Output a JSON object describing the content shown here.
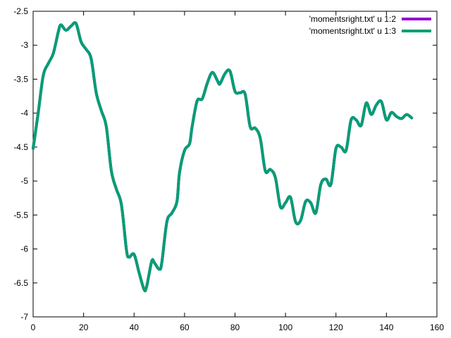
{
  "chart_data": {
    "type": "line",
    "title": "",
    "xlabel": "",
    "ylabel": "",
    "xlim": [
      0,
      160
    ],
    "ylim": [
      -7,
      -2.5
    ],
    "xticks": [
      "0",
      "20",
      "40",
      "60",
      "80",
      "100",
      "120",
      "140",
      "160"
    ],
    "yticks": [
      "-2.5",
      "-3",
      "-3.5",
      "-4",
      "-4.5",
      "-5",
      "-5.5",
      "-6",
      "-6.5",
      "-7"
    ],
    "grid": false,
    "legend_position": "top-right",
    "series": [
      {
        "name": "'momentsright.txt' u 1:2",
        "color": "#9400d3",
        "x": [
          0,
          2,
          4,
          6,
          8,
          10,
          11,
          13,
          15,
          17,
          19,
          21,
          23,
          25,
          27,
          29,
          31,
          33,
          35,
          37,
          38,
          40,
          42,
          44,
          45,
          47,
          48,
          50,
          51,
          53,
          55,
          57,
          58,
          60,
          62,
          63,
          65,
          67,
          69,
          71,
          73,
          74,
          76,
          78,
          80,
          82,
          84,
          86,
          88,
          90,
          92,
          94,
          96,
          98,
          100,
          102,
          104,
          106,
          108,
          110,
          112,
          114,
          116,
          118,
          120,
          122,
          124,
          126,
          128,
          130,
          132,
          134,
          136,
          138,
          140,
          142,
          144,
          146,
          148,
          150
        ],
        "values": [
          -4.52,
          -4.0,
          -3.45,
          -3.27,
          -3.12,
          -2.8,
          -2.7,
          -2.78,
          -2.72,
          -2.68,
          -2.95,
          -3.06,
          -3.2,
          -3.7,
          -3.96,
          -4.2,
          -4.85,
          -5.12,
          -5.35,
          -6.02,
          -6.12,
          -6.08,
          -6.35,
          -6.6,
          -6.55,
          -6.18,
          -6.2,
          -6.3,
          -6.2,
          -5.6,
          -5.47,
          -5.3,
          -4.88,
          -4.55,
          -4.45,
          -4.2,
          -3.82,
          -3.79,
          -3.56,
          -3.4,
          -3.52,
          -3.57,
          -3.42,
          -3.38,
          -3.68,
          -3.7,
          -3.72,
          -4.2,
          -4.22,
          -4.37,
          -4.85,
          -4.83,
          -4.95,
          -5.38,
          -5.32,
          -5.24,
          -5.6,
          -5.58,
          -5.3,
          -5.32,
          -5.47,
          -5.05,
          -4.97,
          -5.05,
          -4.52,
          -4.5,
          -4.55,
          -4.1,
          -4.1,
          -4.18,
          -3.85,
          -4.02,
          -3.88,
          -3.83,
          -4.1,
          -3.99,
          -4.05,
          -4.08,
          -4.02,
          -4.07
        ]
      },
      {
        "name": "'momentsright.txt' u 1:3",
        "color": "#009e73",
        "x": [
          0,
          2,
          4,
          6,
          8,
          10,
          11,
          13,
          15,
          17,
          19,
          21,
          23,
          25,
          27,
          29,
          31,
          33,
          35,
          37,
          38,
          40,
          42,
          44,
          45,
          47,
          48,
          50,
          51,
          53,
          55,
          57,
          58,
          60,
          62,
          63,
          65,
          67,
          69,
          71,
          73,
          74,
          76,
          78,
          80,
          82,
          84,
          86,
          88,
          90,
          92,
          94,
          96,
          98,
          100,
          102,
          104,
          106,
          108,
          110,
          112,
          114,
          116,
          118,
          120,
          122,
          124,
          126,
          128,
          130,
          132,
          134,
          136,
          138,
          140,
          142,
          144,
          146,
          148,
          150
        ],
        "values": [
          -4.52,
          -4.0,
          -3.45,
          -3.27,
          -3.12,
          -2.8,
          -2.7,
          -2.78,
          -2.72,
          -2.68,
          -2.95,
          -3.06,
          -3.2,
          -3.7,
          -3.96,
          -4.2,
          -4.85,
          -5.12,
          -5.35,
          -6.02,
          -6.12,
          -6.08,
          -6.35,
          -6.6,
          -6.55,
          -6.18,
          -6.2,
          -6.3,
          -6.2,
          -5.6,
          -5.47,
          -5.3,
          -4.88,
          -4.55,
          -4.45,
          -4.2,
          -3.82,
          -3.79,
          -3.56,
          -3.4,
          -3.52,
          -3.57,
          -3.42,
          -3.38,
          -3.68,
          -3.7,
          -3.72,
          -4.2,
          -4.22,
          -4.37,
          -4.85,
          -4.83,
          -4.95,
          -5.38,
          -5.32,
          -5.24,
          -5.6,
          -5.58,
          -5.3,
          -5.32,
          -5.47,
          -5.05,
          -4.97,
          -5.05,
          -4.52,
          -4.5,
          -4.55,
          -4.1,
          -4.1,
          -4.18,
          -3.85,
          -4.02,
          -3.88,
          -3.83,
          -4.1,
          -3.99,
          -4.05,
          -4.08,
          -4.02,
          -4.07
        ]
      }
    ]
  }
}
